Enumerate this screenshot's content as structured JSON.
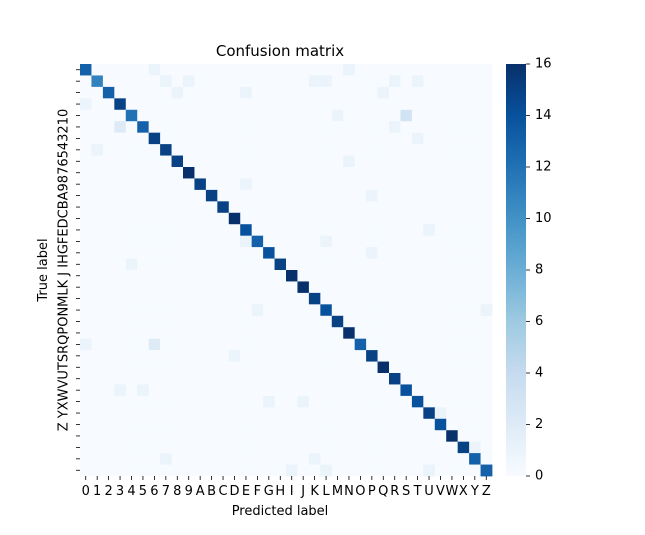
{
  "chart_data": {
    "type": "heatmap",
    "title": "Confusion matrix",
    "xlabel": "Predicted label",
    "ylabel": "True label",
    "labels": [
      "0",
      "1",
      "2",
      "3",
      "4",
      "5",
      "6",
      "7",
      "8",
      "9",
      "A",
      "B",
      "C",
      "D",
      "E",
      "F",
      "G",
      "H",
      "I",
      "J",
      "K",
      "L",
      "M",
      "N",
      "O",
      "P",
      "Q",
      "R",
      "S",
      "T",
      "U",
      "V",
      "W",
      "X",
      "Y",
      "Z"
    ],
    "ytick_label": "Z YXWVUTSRQPONMLK J IHGFEDCBA9876543210",
    "vmin": 0,
    "vmax": 16,
    "colorbar_ticks": [
      0,
      2,
      4,
      6,
      8,
      10,
      12,
      14,
      16
    ],
    "colormap": [
      "#f7fbff",
      "#deebf7",
      "#c6dbef",
      "#9ecae1",
      "#6baed6",
      "#4292c6",
      "#2171b5",
      "#08519c",
      "#08306b"
    ],
    "diagonal": [
      13,
      11,
      13,
      15,
      12,
      13,
      15,
      15,
      15,
      16,
      15,
      15,
      15,
      16,
      14,
      13,
      14,
      15,
      16,
      16,
      15,
      14,
      15,
      16,
      13,
      15,
      16,
      15,
      14,
      14,
      15,
      14,
      16,
      15,
      13,
      13
    ],
    "off_diagonal": [
      {
        "row": 0,
        "col": 6,
        "value": 1
      },
      {
        "row": 0,
        "col": 23,
        "value": 1
      },
      {
        "row": 1,
        "col": 7,
        "value": 1
      },
      {
        "row": 1,
        "col": 9,
        "value": 1
      },
      {
        "row": 1,
        "col": 20,
        "value": 1
      },
      {
        "row": 1,
        "col": 21,
        "value": 1
      },
      {
        "row": 1,
        "col": 27,
        "value": 1
      },
      {
        "row": 1,
        "col": 29,
        "value": 1
      },
      {
        "row": 2,
        "col": 8,
        "value": 1
      },
      {
        "row": 2,
        "col": 14,
        "value": 1
      },
      {
        "row": 2,
        "col": 26,
        "value": 1
      },
      {
        "row": 3,
        "col": 0,
        "value": 1
      },
      {
        "row": 4,
        "col": 22,
        "value": 1
      },
      {
        "row": 4,
        "col": 28,
        "value": 3
      },
      {
        "row": 5,
        "col": 3,
        "value": 2
      },
      {
        "row": 5,
        "col": 27,
        "value": 1
      },
      {
        "row": 6,
        "col": 29,
        "value": 1
      },
      {
        "row": 7,
        "col": 1,
        "value": 1
      },
      {
        "row": 8,
        "col": 23,
        "value": 1
      },
      {
        "row": 10,
        "col": 14,
        "value": 1
      },
      {
        "row": 11,
        "col": 25,
        "value": 1
      },
      {
        "row": 14,
        "col": 30,
        "value": 1
      },
      {
        "row": 15,
        "col": 14,
        "value": 1
      },
      {
        "row": 15,
        "col": 21,
        "value": 1
      },
      {
        "row": 16,
        "col": 25,
        "value": 1
      },
      {
        "row": 17,
        "col": 4,
        "value": 1
      },
      {
        "row": 21,
        "col": 15,
        "value": 1
      },
      {
        "row": 21,
        "col": 35,
        "value": 1
      },
      {
        "row": 24,
        "col": 0,
        "value": 1
      },
      {
        "row": 24,
        "col": 6,
        "value": 2
      },
      {
        "row": 25,
        "col": 13,
        "value": 1
      },
      {
        "row": 28,
        "col": 3,
        "value": 1
      },
      {
        "row": 28,
        "col": 5,
        "value": 1
      },
      {
        "row": 29,
        "col": 16,
        "value": 1
      },
      {
        "row": 29,
        "col": 19,
        "value": 1
      },
      {
        "row": 30,
        "col": 31,
        "value": 1
      },
      {
        "row": 33,
        "col": 34,
        "value": 1
      },
      {
        "row": 34,
        "col": 7,
        "value": 1
      },
      {
        "row": 34,
        "col": 20,
        "value": 1
      },
      {
        "row": 35,
        "col": 18,
        "value": 1
      },
      {
        "row": 35,
        "col": 21,
        "value": 1
      },
      {
        "row": 35,
        "col": 30,
        "value": 1
      }
    ]
  }
}
